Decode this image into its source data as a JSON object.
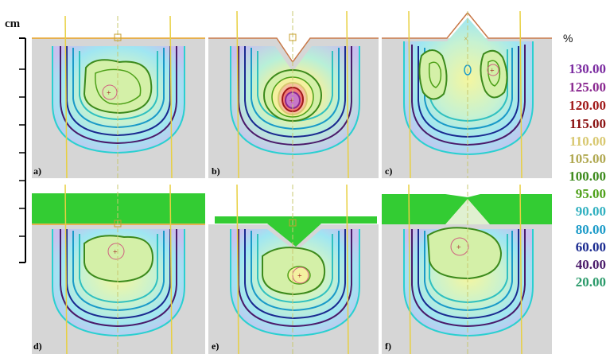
{
  "axis": {
    "unit_label": "cm"
  },
  "legend": {
    "percent_label": "%",
    "levels": [
      {
        "text": "130.00",
        "color": "#7a2aa0"
      },
      {
        "text": "125.00",
        "color": "#8a2890"
      },
      {
        "text": "120.00",
        "color": "#a01818"
      },
      {
        "text": "115.00",
        "color": "#8a1010"
      },
      {
        "text": "110.00",
        "color": "#d8c870"
      },
      {
        "text": "105.00",
        "color": "#b0a850"
      },
      {
        "text": "100.00",
        "color": "#3c8a1c"
      },
      {
        "text": "95.00",
        "color": "#4ea018"
      },
      {
        "text": "90.00",
        "color": "#30b0c0"
      },
      {
        "text": "80.00",
        "color": "#1a9ac8"
      },
      {
        "text": "60.00",
        "color": "#1a2a90"
      },
      {
        "text": "40.00",
        "color": "#4a1a6a"
      },
      {
        "text": "20.00",
        "color": "#2a9a6a"
      }
    ]
  },
  "panels": [
    {
      "label": "a)"
    },
    {
      "label": "b)"
    },
    {
      "label": "c)"
    },
    {
      "label": "d)"
    },
    {
      "label": "e)"
    },
    {
      "label": "f)"
    }
  ]
}
